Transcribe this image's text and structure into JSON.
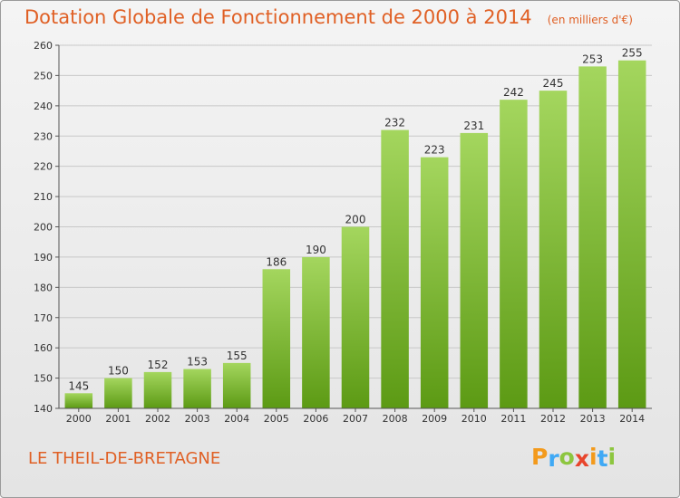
{
  "title": "Dotation Globale de Fonctionnement de 2000 à 2014",
  "unit": "(en milliers d'€)",
  "commune": "LE THEIL-DE-BRETAGNE",
  "logo": {
    "letters": [
      "P",
      "r",
      "o",
      "x",
      "i",
      "t",
      "i"
    ],
    "colors": [
      "#f39a1c",
      "#3fa9f5",
      "#8dc63f",
      "#e8452c",
      "#f39a1c",
      "#3fa9f5",
      "#8dc63f"
    ]
  },
  "colors": {
    "accent": "#e06025",
    "bar_light": "#a4d65e",
    "bar_dark": "#5c9a14"
  },
  "chart_data": {
    "type": "bar",
    "title": "Dotation Globale de Fonctionnement de 2000 à 2014",
    "subtitle": "(en milliers d'€)",
    "xlabel": "",
    "ylabel": "",
    "categories": [
      "2000",
      "2001",
      "2002",
      "2003",
      "2004",
      "2005",
      "2006",
      "2007",
      "2008",
      "2009",
      "2010",
      "2011",
      "2012",
      "2013",
      "2014"
    ],
    "values": [
      145,
      150,
      152,
      153,
      155,
      186,
      190,
      200,
      232,
      223,
      231,
      242,
      245,
      253,
      255
    ],
    "ylim": [
      140,
      260
    ],
    "yticks": [
      140,
      150,
      160,
      170,
      180,
      190,
      200,
      210,
      220,
      230,
      240,
      250,
      260
    ],
    "grid": true,
    "legend": "none"
  }
}
